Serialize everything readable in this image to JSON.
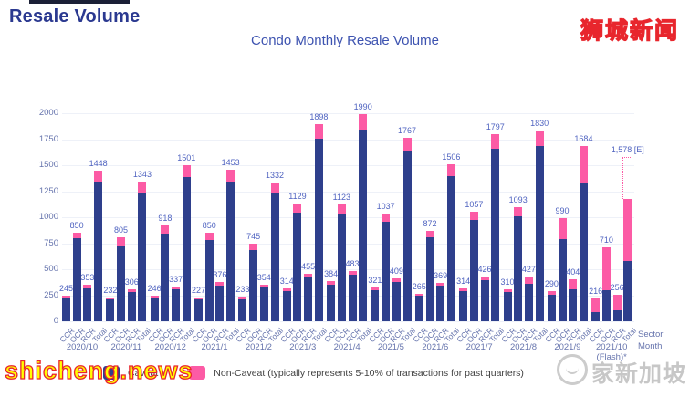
{
  "header": {
    "title": "Resale Volume"
  },
  "watermarks": {
    "bottom_left": "shicheng.news",
    "top_right": "狮城新闻",
    "bottom_right": "家新加坡"
  },
  "legend": {
    "caveat_label": "Caveat",
    "non_caveat_label": "Non-Caveat (typically represents 5-10% of transactions for past quarters)",
    "caveat_color": "#2e3f8c",
    "non_caveat_color": "#fc5ba5"
  },
  "chart_data": {
    "type": "bar",
    "stacked": true,
    "title": "Condo Monthly Resale Volume",
    "xlabel": "Sector Month",
    "ylabel": "",
    "ylim": [
      0,
      2000
    ],
    "yticks": [
      0,
      250,
      500,
      750,
      1000,
      1250,
      1500,
      1750,
      2000
    ],
    "grid": true,
    "legend_position": "bottom",
    "series_names": [
      "Caveat",
      "Non-Caveat"
    ],
    "colors": {
      "caveat": "#2e3f8c",
      "non_caveat": "#fc5ba5"
    },
    "sectors": [
      "CCR",
      "OCR",
      "RCR",
      "Total"
    ],
    "months": [
      {
        "label": "2020/10",
        "bars": [
          {
            "sector": "CCR",
            "label": "245",
            "total": 245,
            "caveat": 216
          },
          {
            "sector": "OCR",
            "label": "850",
            "total": 850,
            "caveat": 795
          },
          {
            "sector": "RCR",
            "label": "353",
            "total": 353,
            "caveat": 320
          },
          {
            "sector": "Total",
            "label": "1448",
            "total": 1448,
            "caveat": 1340
          }
        ]
      },
      {
        "label": "2020/11",
        "bars": [
          {
            "sector": "CCR",
            "label": "232",
            "total": 232,
            "caveat": 212
          },
          {
            "sector": "OCR",
            "label": "805",
            "total": 805,
            "caveat": 728
          },
          {
            "sector": "RCR",
            "label": "306",
            "total": 306,
            "caveat": 280
          },
          {
            "sector": "Total",
            "label": "1343",
            "total": 1343,
            "caveat": 1232
          }
        ]
      },
      {
        "label": "2020/12",
        "bars": [
          {
            "sector": "CCR",
            "label": "246",
            "total": 246,
            "caveat": 226
          },
          {
            "sector": "OCR",
            "label": "918",
            "total": 918,
            "caveat": 845
          },
          {
            "sector": "RCR",
            "label": "337",
            "total": 337,
            "caveat": 309
          },
          {
            "sector": "Total",
            "label": "1501",
            "total": 1501,
            "caveat": 1382
          }
        ]
      },
      {
        "label": "2021/1",
        "bars": [
          {
            "sector": "CCR",
            "label": "227",
            "total": 227,
            "caveat": 208
          },
          {
            "sector": "OCR",
            "label": "850",
            "total": 850,
            "caveat": 782
          },
          {
            "sector": "RCR",
            "label": "376",
            "total": 376,
            "caveat": 346
          },
          {
            "sector": "Total",
            "label": "1453",
            "total": 1453,
            "caveat": 1338
          }
        ]
      },
      {
        "label": "2021/2",
        "bars": [
          {
            "sector": "CCR",
            "label": "233",
            "total": 233,
            "caveat": 214
          },
          {
            "sector": "OCR",
            "label": "745",
            "total": 745,
            "caveat": 687
          },
          {
            "sector": "RCR",
            "label": "354",
            "total": 354,
            "caveat": 326
          },
          {
            "sector": "Total",
            "label": "1332",
            "total": 1332,
            "caveat": 1227
          }
        ]
      },
      {
        "label": "2021/3",
        "bars": [
          {
            "sector": "CCR",
            "label": "314",
            "total": 314,
            "caveat": 289
          },
          {
            "sector": "OCR",
            "label": "1129",
            "total": 1129,
            "caveat": 1042
          },
          {
            "sector": "RCR",
            "label": "455",
            "total": 455,
            "caveat": 419
          },
          {
            "sector": "Total",
            "label": "1898",
            "total": 1898,
            "caveat": 1752
          }
        ]
      },
      {
        "label": "2021/4",
        "bars": [
          {
            "sector": "CCR",
            "label": "384",
            "total": 384,
            "caveat": 354
          },
          {
            "sector": "OCR",
            "label": "1123",
            "total": 1123,
            "caveat": 1037
          },
          {
            "sector": "RCR",
            "label": "483",
            "total": 483,
            "caveat": 446
          },
          {
            "sector": "Total",
            "label": "1990",
            "total": 1990,
            "caveat": 1838
          }
        ]
      },
      {
        "label": "2021/5",
        "bars": [
          {
            "sector": "CCR",
            "label": "321",
            "total": 321,
            "caveat": 296
          },
          {
            "sector": "OCR",
            "label": "1037",
            "total": 1037,
            "caveat": 957
          },
          {
            "sector": "RCR",
            "label": "409",
            "total": 409,
            "caveat": 377
          },
          {
            "sector": "Total",
            "label": "1767",
            "total": 1767,
            "caveat": 1631
          }
        ]
      },
      {
        "label": "2021/6",
        "bars": [
          {
            "sector": "CCR",
            "label": "265",
            "total": 265,
            "caveat": 244
          },
          {
            "sector": "OCR",
            "label": "872",
            "total": 872,
            "caveat": 805
          },
          {
            "sector": "RCR",
            "label": "369",
            "total": 369,
            "caveat": 340
          },
          {
            "sector": "Total",
            "label": "1506",
            "total": 1506,
            "caveat": 1391
          }
        ]
      },
      {
        "label": "2021/7",
        "bars": [
          {
            "sector": "CCR",
            "label": "314",
            "total": 314,
            "caveat": 289
          },
          {
            "sector": "OCR",
            "label": "1057",
            "total": 1057,
            "caveat": 975
          },
          {
            "sector": "RCR",
            "label": "426",
            "total": 426,
            "caveat": 393
          },
          {
            "sector": "Total",
            "label": "1797",
            "total": 1797,
            "caveat": 1659
          }
        ]
      },
      {
        "label": "2021/8",
        "bars": [
          {
            "sector": "CCR",
            "label": "310",
            "total": 310,
            "caveat": 285
          },
          {
            "sector": "OCR",
            "label": "1093",
            "total": 1093,
            "caveat": 1008
          },
          {
            "sector": "RCR",
            "label": "427",
            "total": 427,
            "caveat": 360
          },
          {
            "sector": "Total",
            "label": "1830",
            "total": 1830,
            "caveat": 1688
          }
        ]
      },
      {
        "label": "2021/9",
        "bars": [
          {
            "sector": "CCR",
            "label": "290",
            "total": 290,
            "caveat": 252
          },
          {
            "sector": "OCR",
            "label": "990",
            "total": 990,
            "caveat": 786
          },
          {
            "sector": "RCR",
            "label": "404",
            "total": 404,
            "caveat": 308
          },
          {
            "sector": "Total",
            "label": "1684",
            "total": 1684,
            "caveat": 1330
          }
        ]
      },
      {
        "label": "2021/10",
        "sublabel": "(Flash)*",
        "bars": [
          {
            "sector": "CCR",
            "label": "216",
            "total": 216,
            "caveat": 90
          },
          {
            "sector": "OCR",
            "label": "710",
            "total": 710,
            "caveat": 298
          },
          {
            "sector": "RCR",
            "label": "256",
            "total": 256,
            "caveat": 105
          },
          {
            "sector": "Total",
            "label": "1,578 [E]",
            "total": 1578,
            "caveat": 580,
            "solid": 1175,
            "dashed_top": 1578,
            "estimated": true
          }
        ]
      }
    ]
  }
}
